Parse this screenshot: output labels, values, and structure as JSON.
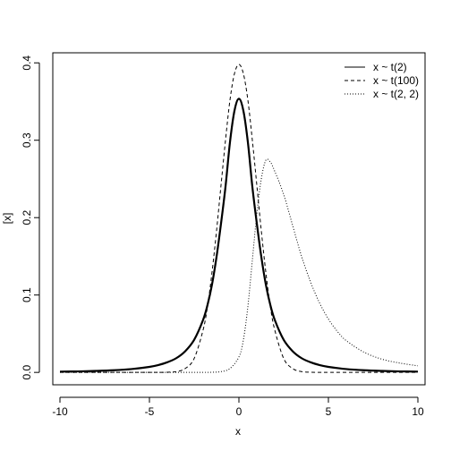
{
  "chart_data": {
    "type": "line",
    "title": "",
    "xlabel": "x",
    "ylabel": "[x]",
    "xlim": [
      -10.4,
      10.4
    ],
    "ylim": [
      -0.016,
      0.413
    ],
    "xticks": [
      -10,
      -5,
      0,
      5,
      10
    ],
    "xtick_labels": [
      "-10",
      "-5",
      "0",
      "5",
      "10"
    ],
    "yticks": [
      0.0,
      0.1,
      0.2,
      0.3,
      0.4
    ],
    "ytick_labels": [
      "0.0",
      "0.1",
      "0.2",
      "0.3",
      "0.4"
    ],
    "grid": false,
    "legend_position": "top-right",
    "series": [
      {
        "name": "x ~ t(2)",
        "line_style": "solid",
        "line_weight": "thick",
        "color": "#000000",
        "x": [
          -10,
          -9,
          -8,
          -7,
          -6,
          -5,
          -4.5,
          -4,
          -3.5,
          -3,
          -2.5,
          -2,
          -1.75,
          -1.5,
          -1.25,
          -1,
          -0.75,
          -0.5,
          -0.25,
          0,
          0.25,
          0.5,
          0.75,
          1,
          1.25,
          1.5,
          1.75,
          2,
          2.5,
          3,
          3.5,
          4,
          4.5,
          5,
          6,
          7,
          8,
          9,
          10
        ],
        "y": [
          0.001,
          0.0013,
          0.0019,
          0.0028,
          0.0043,
          0.0071,
          0.0095,
          0.0131,
          0.0184,
          0.0274,
          0.0422,
          0.068,
          0.0876,
          0.114,
          0.1495,
          0.1925,
          0.24,
          0.2975,
          0.338,
          0.3536,
          0.338,
          0.2975,
          0.24,
          0.1925,
          0.1495,
          0.114,
          0.0876,
          0.068,
          0.0422,
          0.0274,
          0.0184,
          0.0131,
          0.0095,
          0.0071,
          0.0043,
          0.0028,
          0.0019,
          0.0013,
          0.001
        ]
      },
      {
        "name": "x ~ t(100)",
        "line_style": "dashed",
        "line_weight": "thin",
        "color": "#000000",
        "x": [
          -10,
          -6,
          -5,
          -4.5,
          -4,
          -3.5,
          -3,
          -2.5,
          -2,
          -1.75,
          -1.5,
          -1.25,
          -1,
          -0.75,
          -0.5,
          -0.25,
          0,
          0.25,
          0.5,
          0.75,
          1,
          1.25,
          1.5,
          1.75,
          2,
          2.5,
          3,
          3.5,
          4,
          4.5,
          5,
          6,
          10
        ],
        "y": [
          0.0,
          0.0,
          0.0,
          0.0001,
          0.0002,
          0.001,
          0.005,
          0.018,
          0.055,
          0.086,
          0.13,
          0.183,
          0.242,
          0.3,
          0.352,
          0.386,
          0.398,
          0.386,
          0.352,
          0.3,
          0.242,
          0.183,
          0.13,
          0.086,
          0.055,
          0.018,
          0.005,
          0.001,
          0.0002,
          0.0001,
          0.0,
          0.0,
          0.0
        ]
      },
      {
        "name": "x ~ t(2, 2)",
        "line_style": "dotted",
        "line_weight": "thin",
        "color": "#000000",
        "x": [
          -10,
          -5,
          -3,
          -2,
          -1.5,
          -1,
          -0.5,
          0,
          0.25,
          0.5,
          0.75,
          1,
          1.25,
          1.5,
          1.75,
          2,
          2.5,
          3,
          3.5,
          4,
          4.5,
          5,
          5.5,
          6,
          7,
          8,
          9,
          10
        ],
        "y": [
          0.0,
          0.0,
          0.0,
          0.0,
          0.0002,
          0.001,
          0.005,
          0.02,
          0.042,
          0.085,
          0.145,
          0.205,
          0.25,
          0.274,
          0.272,
          0.26,
          0.23,
          0.19,
          0.15,
          0.117,
          0.09,
          0.069,
          0.053,
          0.041,
          0.026,
          0.017,
          0.012,
          0.0085
        ]
      }
    ]
  }
}
